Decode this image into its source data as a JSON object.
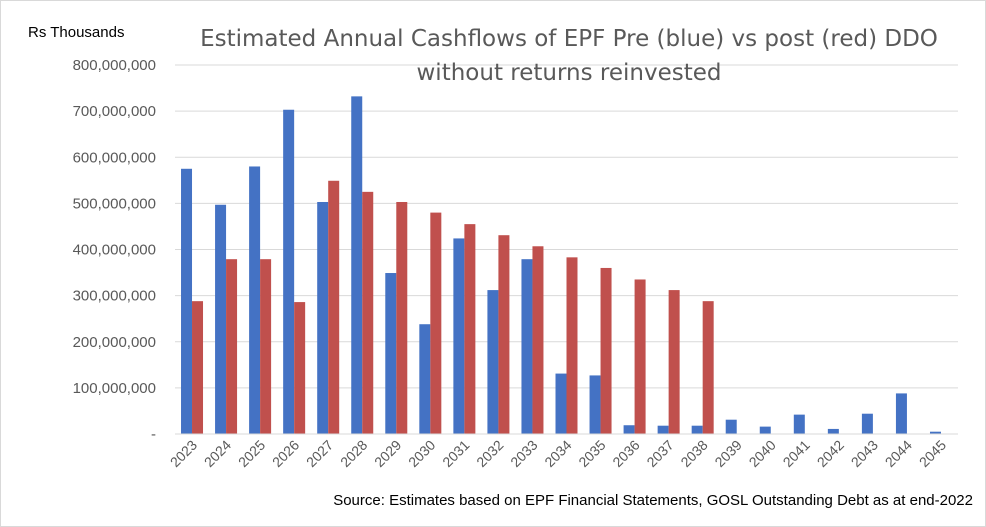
{
  "chart_data": {
    "type": "bar",
    "title_lines": [
      "Estimated Annual Cashflows of EPF Pre (blue) vs post (red) DDO",
      "without returns reinvested"
    ],
    "ylabel": "Rs Thousands",
    "source": "Source: Estimates based on EPF Financial Statements, GOSL Outstanding Debt as at end-2022",
    "ylim": [
      0,
      800000000
    ],
    "y_ticks": [
      {
        "value": 0,
        "label": "-"
      },
      {
        "value": 100000000,
        "label": "100,000,000"
      },
      {
        "value": 200000000,
        "label": "200,000,000"
      },
      {
        "value": 300000000,
        "label": "300,000,000"
      },
      {
        "value": 400000000,
        "label": "400,000,000"
      },
      {
        "value": 500000000,
        "label": "500,000,000"
      },
      {
        "value": 600000000,
        "label": "600,000,000"
      },
      {
        "value": 700000000,
        "label": "700,000,000"
      },
      {
        "value": 800000000,
        "label": "800,000,000"
      }
    ],
    "grid": true,
    "legend": "none",
    "categories": [
      "2023",
      "2024",
      "2025",
      "2026",
      "2027",
      "2028",
      "2029",
      "2030",
      "2031",
      "2032",
      "2033",
      "2034",
      "2035",
      "2036",
      "2037",
      "2038",
      "2039",
      "2040",
      "2041",
      "2042",
      "2043",
      "2044",
      "2045"
    ],
    "series": [
      {
        "color": "#4472c4",
        "values": [
          575000000,
          497000000,
          580000000,
          703000000,
          503000000,
          732000000,
          349000000,
          238000000,
          424000000,
          312000000,
          379000000,
          131000000,
          127000000,
          19000000,
          18000000,
          18000000,
          31000000,
          16000000,
          42000000,
          11000000,
          44000000,
          88000000,
          5000000
        ]
      },
      {
        "color": "#c0504d",
        "values": [
          288000000,
          379000000,
          379000000,
          286000000,
          549000000,
          525000000,
          503000000,
          480000000,
          455000000,
          431000000,
          407000000,
          383000000,
          360000000,
          335000000,
          312000000,
          288000000,
          0,
          0,
          0,
          0,
          0,
          0,
          0
        ]
      }
    ]
  }
}
